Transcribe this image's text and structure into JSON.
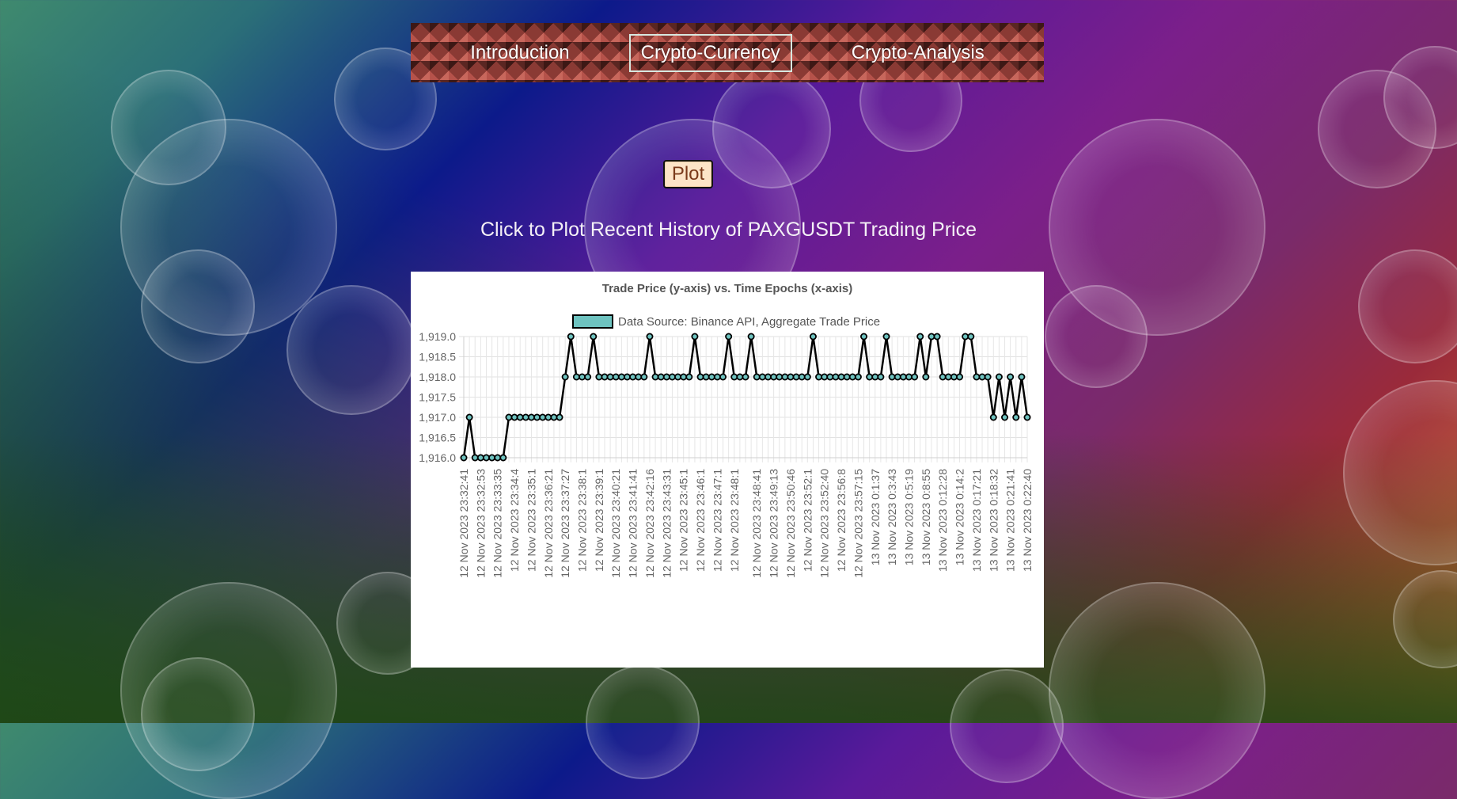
{
  "nav": {
    "items": [
      {
        "label": "Introduction",
        "active": false
      },
      {
        "label": "Crypto-Currency",
        "active": true
      },
      {
        "label": "Crypto-Analysis",
        "active": false
      }
    ]
  },
  "plot_button": {
    "label": "Plot"
  },
  "caption": "Click to Plot Recent History of PAXGUSDT Trading Price",
  "colors": {
    "line": "#000000",
    "marker_fill": "#6ec3c0",
    "button_bg": "#fde4c7",
    "button_text": "#7a3a1a"
  },
  "chart_data": {
    "type": "line",
    "title": "Trade Price (y-axis) vs. Time Epochs (x-axis)",
    "legend": "Data Source: Binance API, Aggregate Trade Price",
    "legend_position": "top",
    "xlabel": "",
    "ylabel": "",
    "ylim": [
      1916.0,
      1919.0
    ],
    "yticks": [
      "1,916.0",
      "1,916.5",
      "1,917.0",
      "1,917.5",
      "1,918.0",
      "1,918.5",
      "1,919.0"
    ],
    "grid": true,
    "xtick_labels": [
      "12 Nov 2023 23:32:41",
      "12 Nov 2023 23:32:53",
      "12 Nov 2023 23:33:35",
      "12 Nov 2023 23:34:4",
      "12 Nov 2023 23:35:1",
      "12 Nov 2023 23:36:21",
      "12 Nov 2023 23:37:27",
      "12 Nov 2023 23:38:1",
      "12 Nov 2023 23:39:1",
      "12 Nov 2023 23:40:21",
      "12 Nov 2023 23:41:41",
      "12 Nov 2023 23:42:16",
      "12 Nov 2023 23:43:31",
      "12 Nov 2023 23:45:1",
      "12 Nov 2023 23:46:1",
      "12 Nov 2023 23:47:1",
      "12 Nov 2023 23:48:1",
      "12 Nov 2023 23:48:41",
      "12 Nov 2023 23:49:13",
      "12 Nov 2023 23:50:46",
      "12 Nov 2023 23:52:1",
      "12 Nov 2023 23:52:40",
      "12 Nov 2023 23:56:8",
      "12 Nov 2023 23:57:15",
      "13 Nov 2023 0:1:37",
      "13 Nov 2023 0:3:43",
      "13 Nov 2023 0:5:19",
      "13 Nov 2023 0:8:55",
      "13 Nov 2023 0:12:28",
      "13 Nov 2023 0:14:2",
      "13 Nov 2023 0:17:21",
      "13 Nov 2023 0:18:32",
      "13 Nov 2023 0:21:41",
      "13 Nov 2023 0:22:40"
    ],
    "values": [
      1916,
      1917,
      1916,
      1916,
      1916,
      1916,
      1916,
      1916,
      1917,
      1917,
      1917,
      1917,
      1917,
      1917,
      1917,
      1917,
      1917,
      1917,
      1918,
      1919,
      1918,
      1918,
      1918,
      1919,
      1918,
      1918,
      1918,
      1918,
      1918,
      1918,
      1918,
      1918,
      1918,
      1919,
      1918,
      1918,
      1918,
      1918,
      1918,
      1918,
      1918,
      1919,
      1918,
      1918,
      1918,
      1918,
      1918,
      1919,
      1918,
      1918,
      1918,
      1919,
      1918,
      1918,
      1918,
      1918,
      1918,
      1918,
      1918,
      1918,
      1918,
      1918,
      1919,
      1918,
      1918,
      1918,
      1918,
      1918,
      1918,
      1918,
      1918,
      1919,
      1918,
      1918,
      1918,
      1919,
      1918,
      1918,
      1918,
      1918,
      1918,
      1919,
      1918,
      1919,
      1919,
      1918,
      1918,
      1918,
      1918,
      1919,
      1919,
      1918,
      1918,
      1918,
      1917,
      1918,
      1917,
      1918,
      1917,
      1918,
      1917
    ]
  }
}
